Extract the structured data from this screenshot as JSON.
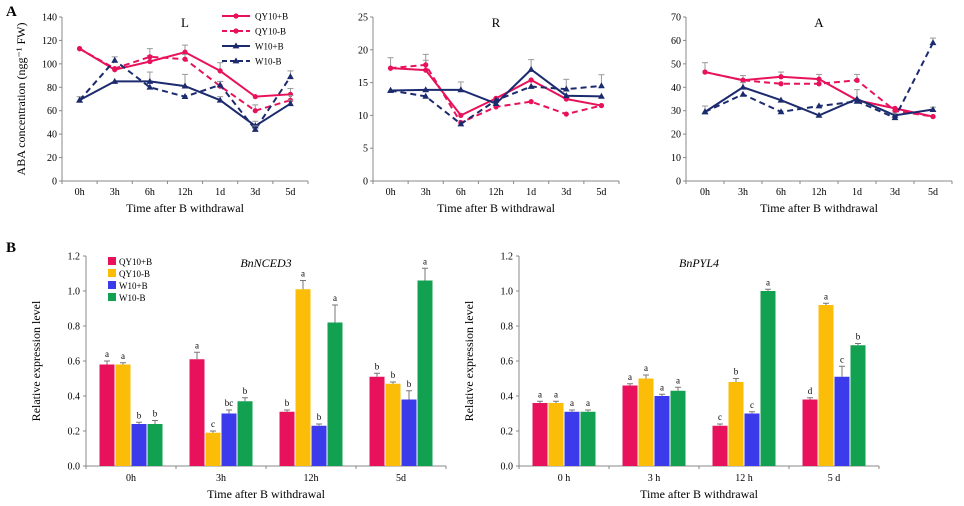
{
  "panel_labels": {
    "a": "A",
    "b": "B"
  },
  "colors": {
    "qy_plus": "#e8115b",
    "qy_minus": "#e8115b",
    "w_plus": "#1c2a6e",
    "w_minus": "#1c2a6e",
    "bar_qy_plus": "#e8115b",
    "bar_qy_minus": "#fbbd08",
    "bar_w_plus": "#3b3bec",
    "bar_w_minus": "#12a150"
  },
  "chart_data": [
    {
      "id": "L",
      "type": "line",
      "title": "L",
      "ylabel": "ABA concentration (ngg⁻¹ FW)",
      "xlabel": "Time after B withdrawal",
      "ylim": [
        0,
        140
      ],
      "yticks": [
        0,
        20,
        40,
        60,
        80,
        100,
        120,
        140
      ],
      "categories": [
        "0h",
        "3h",
        "6h",
        "12h",
        "1d",
        "3d",
        "5d"
      ],
      "legend": [
        "QY10+B",
        "QY10-B",
        "W10+B",
        "W10-B"
      ],
      "series": [
        {
          "name": "QY10+B",
          "values": [
            113,
            95,
            102,
            110,
            94,
            72,
            74
          ],
          "err": [
            0,
            0,
            5,
            6,
            7,
            0,
            5
          ]
        },
        {
          "name": "QY10-B",
          "values": [
            113,
            96,
            106,
            104,
            81,
            60,
            69
          ],
          "err": [
            0,
            0,
            7,
            4,
            4,
            5,
            4
          ]
        },
        {
          "name": "W10+B",
          "values": [
            69,
            85,
            85,
            81,
            69,
            47,
            66
          ],
          "err": [
            3,
            0,
            8,
            10,
            3,
            4,
            3
          ]
        },
        {
          "name": "W10-B",
          "values": [
            69,
            103,
            80,
            72,
            82,
            44,
            89
          ],
          "err": [
            0,
            3,
            0,
            0,
            3,
            3,
            5
          ]
        }
      ]
    },
    {
      "id": "R",
      "type": "line",
      "title": "R",
      "xlabel": "Time after B withdrawal",
      "ylim": [
        0,
        25
      ],
      "yticks": [
        0,
        5,
        10,
        15,
        20,
        25
      ],
      "categories": [
        "0h",
        "3h",
        "6h",
        "12h",
        "1d",
        "3d",
        "5d"
      ],
      "series": [
        {
          "name": "QY10+B",
          "values": [
            17.2,
            16.9,
            10.0,
            12.6,
            15.4,
            12.5,
            11.5
          ],
          "err": [
            1.6,
            1.5,
            0,
            0,
            0,
            0,
            0
          ]
        },
        {
          "name": "QY10-B",
          "values": [
            17.2,
            17.7,
            8.9,
            11.3,
            12.1,
            10.2,
            11.5
          ],
          "err": [
            0,
            1.6,
            0,
            0,
            0,
            0,
            0
          ]
        },
        {
          "name": "W10+B",
          "values": [
            13.8,
            13.9,
            13.9,
            11.8,
            17.0,
            13.0,
            12.9
          ],
          "err": [
            0,
            0,
            1.2,
            0,
            1.5,
            0,
            0
          ]
        },
        {
          "name": "W10-B",
          "values": [
            13.8,
            12.9,
            8.7,
            12.3,
            14.4,
            14.0,
            14.5
          ],
          "err": [
            0,
            0,
            0,
            0,
            0,
            1.5,
            1.7
          ]
        }
      ]
    },
    {
      "id": "A",
      "type": "line",
      "title": "A",
      "xlabel": "Time after B withdrawal",
      "ylim": [
        0,
        70
      ],
      "yticks": [
        0,
        10,
        20,
        30,
        40,
        50,
        60,
        70
      ],
      "categories": [
        "0h",
        "3h",
        "6h",
        "12h",
        "1d",
        "3d",
        "5d"
      ],
      "series": [
        {
          "name": "QY10+B",
          "values": [
            46.5,
            43,
            44.5,
            43.5,
            34.5,
            31,
            27.5
          ],
          "err": [
            4,
            2,
            2,
            2,
            0,
            0,
            0
          ]
        },
        {
          "name": "QY10-B",
          "values": [
            46.5,
            43,
            41.5,
            41.5,
            43,
            30,
            27.5
          ],
          "err": [
            0,
            0,
            0,
            0,
            2.5,
            0,
            0
          ]
        },
        {
          "name": "W10+B",
          "values": [
            29.5,
            40,
            34.5,
            28,
            35,
            28,
            30.5
          ],
          "err": [
            2.5,
            2,
            0,
            0,
            4,
            0,
            1
          ]
        },
        {
          "name": "W10-B",
          "values": [
            29.5,
            37,
            29.5,
            32,
            34,
            27,
            59
          ],
          "err": [
            0,
            0,
            0,
            0,
            0,
            2,
            2
          ]
        }
      ]
    },
    {
      "id": "NCED3",
      "type": "bar",
      "title": "BnNCED3",
      "ylabel": "Relative expression level",
      "xlabel": "Time after B withdrawal",
      "ylim": [
        0,
        1.2
      ],
      "yticks": [
        "0.0",
        "0.2",
        "0.4",
        "0.6",
        "0.8",
        "1.0",
        "1.2"
      ],
      "categories": [
        "0h",
        "3h",
        "12h",
        "5d"
      ],
      "legend": [
        "QY10+B",
        "QY10-B",
        "W10+B",
        "W10-B"
      ],
      "series": [
        {
          "name": "QY10+B",
          "values": [
            0.58,
            0.61,
            0.31,
            0.51
          ],
          "err": [
            0.02,
            0.04,
            0.01,
            0.02
          ],
          "letters": [
            "a",
            "a",
            "b",
            "b"
          ]
        },
        {
          "name": "QY10-B",
          "values": [
            0.58,
            0.19,
            1.01,
            0.47
          ],
          "err": [
            0.01,
            0.01,
            0.05,
            0.01
          ],
          "letters": [
            "a",
            "c",
            "a",
            "b"
          ]
        },
        {
          "name": "W10+B",
          "values": [
            0.24,
            0.3,
            0.23,
            0.38
          ],
          "err": [
            0.01,
            0.02,
            0.01,
            0.05
          ],
          "letters": [
            "b",
            "bc",
            "b",
            "b"
          ]
        },
        {
          "name": "W10-B",
          "values": [
            0.24,
            0.37,
            0.82,
            1.06
          ],
          "err": [
            0.02,
            0.02,
            0.1,
            0.07
          ],
          "letters": [
            "b",
            "b",
            "a",
            "a"
          ]
        }
      ]
    },
    {
      "id": "PYL4",
      "type": "bar",
      "title": "BnPYL4",
      "ylabel": "Relative expression level",
      "xlabel": "Time after B withdrawal",
      "ylim": [
        0,
        1.2
      ],
      "yticks": [
        "0.0",
        "0.2",
        "0.4",
        "0.6",
        "0.8",
        "1.0",
        "1.2"
      ],
      "categories": [
        "0 h",
        "3 h",
        "12 h",
        "5 d"
      ],
      "series": [
        {
          "name": "QY10+B",
          "values": [
            0.36,
            0.46,
            0.23,
            0.38
          ],
          "err": [
            0.01,
            0.01,
            0.01,
            0.01
          ],
          "letters": [
            "a",
            "a",
            "c",
            "d"
          ]
        },
        {
          "name": "QY10-B",
          "values": [
            0.36,
            0.5,
            0.48,
            0.92
          ],
          "err": [
            0.01,
            0.02,
            0.02,
            0.01
          ],
          "letters": [
            "a",
            "a",
            "b",
            "a"
          ]
        },
        {
          "name": "W10+B",
          "values": [
            0.31,
            0.4,
            0.3,
            0.51
          ],
          "err": [
            0.01,
            0.01,
            0.01,
            0.06
          ],
          "letters": [
            "a",
            "a",
            "c",
            "c"
          ]
        },
        {
          "name": "W10-B",
          "values": [
            0.31,
            0.43,
            1.0,
            0.69
          ],
          "err": [
            0.01,
            0.02,
            0.01,
            0.01
          ],
          "letters": [
            "a",
            "a",
            "a",
            "b"
          ]
        }
      ]
    }
  ]
}
